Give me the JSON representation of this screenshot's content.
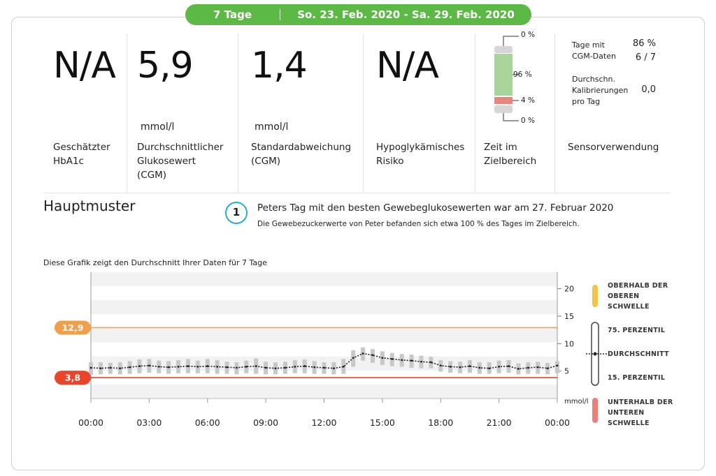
{
  "header": {
    "days": "7 Tage",
    "date_range": "So. 23. Feb. 2020 - Sa. 29. Feb. 2020",
    "color": "#5cb946"
  },
  "stats": {
    "hba1c": {
      "value": "N/A",
      "label": "Geschätzter\nHbA1c"
    },
    "avg_glucose": {
      "value": "5,9",
      "unit": "mmol/l",
      "label": "Durchschnittlicher\nGlukosewert\n(CGM)"
    },
    "std_dev": {
      "value": "1,4",
      "unit": "mmol/l",
      "label": "Standardabweichung\n(CGM)"
    },
    "hypo_risk": {
      "value": "N/A",
      "label": "Hypoglykämisches\nRisiko"
    },
    "time_in_range": {
      "label": "Zeit im\nZielbereich",
      "top_label": "0 %",
      "in_range_label": "96 %",
      "low_label": "4 %",
      "bottom_label": "0 %",
      "above_pct": 0,
      "in_range_pct": 96,
      "below_pct": 4,
      "very_low_pct": 0
    },
    "sensor": {
      "days_label": "Tage mit\nCGM-Daten",
      "days_pct": "86 %",
      "days_count": "6 / 7",
      "calib_label": "Durchschn.\nKalibrierungen\npro Tag",
      "calib_value": "0,0",
      "label": "Sensorverwendung"
    }
  },
  "pattern": {
    "title": "Hauptmuster",
    "number": "1",
    "headline": "Peters Tag mit den besten Gewebeglukosewerten war am 27. Februar 2020",
    "detail": "Die Gewebezuckerwerte von Peter befanden sich etwa 100 % des Tages im Zielbereich."
  },
  "chart_data": {
    "type": "line",
    "caption": "Diese Grafik zeigt den Durchschnitt Ihrer Daten für 7 Tage",
    "x_ticks": [
      "00:00",
      "03:00",
      "06:00",
      "09:00",
      "12:00",
      "15:00",
      "18:00",
      "21:00",
      "00:00"
    ],
    "y_ticks": [
      "20",
      "15",
      "10",
      "5"
    ],
    "y_unit": "mmol/l",
    "ylim": [
      0,
      23
    ],
    "upper_threshold": {
      "value": 12.9,
      "label": "12,9",
      "color": "#f0a04b"
    },
    "lower_threshold": {
      "value": 3.8,
      "label": "3,8",
      "color": "#e8452c"
    },
    "x_hours": [
      0,
      0.5,
      1,
      1.5,
      2,
      2.5,
      3,
      3.5,
      4,
      4.5,
      5,
      5.5,
      6,
      6.5,
      7,
      7.5,
      8,
      8.5,
      9,
      9.5,
      10,
      10.5,
      11,
      11.5,
      12,
      12.5,
      13,
      13.5,
      14,
      14.5,
      15,
      15.5,
      16,
      16.5,
      17,
      17.5,
      18,
      18.5,
      19,
      19.5,
      20,
      20.5,
      21,
      21.5,
      22,
      22.5,
      23,
      23.5,
      24
    ],
    "series": [
      {
        "name": "Durchschnitt",
        "values": [
          5.6,
          5.5,
          5.6,
          5.5,
          5.7,
          5.9,
          6.0,
          5.8,
          5.7,
          5.8,
          5.9,
          5.8,
          5.9,
          5.8,
          5.7,
          5.6,
          5.8,
          5.9,
          5.6,
          5.5,
          5.6,
          5.8,
          5.9,
          5.7,
          5.6,
          5.5,
          5.8,
          7.4,
          8.2,
          7.9,
          7.4,
          7.2,
          7.0,
          6.9,
          6.7,
          6.6,
          6.0,
          5.8,
          5.7,
          5.9,
          5.6,
          5.5,
          5.8,
          5.9,
          5.4,
          5.6,
          5.7,
          5.5,
          6.0
        ]
      },
      {
        "name": "75. Perzentil",
        "values": [
          6.6,
          6.6,
          6.5,
          6.6,
          6.8,
          7.1,
          7.2,
          6.9,
          6.8,
          7.0,
          7.2,
          6.9,
          7.2,
          7.0,
          6.7,
          6.6,
          6.9,
          7.3,
          6.7,
          6.6,
          6.7,
          7.0,
          7.1,
          6.8,
          6.6,
          6.6,
          7.2,
          8.8,
          9.3,
          9.0,
          8.6,
          8.3,
          8.1,
          8.0,
          7.8,
          7.6,
          7.0,
          6.8,
          6.7,
          7.0,
          6.6,
          6.6,
          6.9,
          7.0,
          6.4,
          6.6,
          6.7,
          6.5,
          6.8
        ]
      },
      {
        "name": "15. Perzentil",
        "values": [
          4.3,
          4.4,
          4.5,
          4.4,
          4.5,
          4.6,
          4.7,
          4.6,
          4.5,
          4.6,
          4.6,
          4.6,
          4.6,
          4.5,
          4.5,
          4.4,
          4.6,
          4.5,
          4.4,
          4.4,
          4.5,
          4.6,
          4.6,
          4.5,
          4.5,
          4.4,
          4.5,
          5.8,
          6.9,
          6.5,
          6.1,
          5.9,
          5.8,
          5.6,
          5.5,
          5.5,
          4.9,
          4.7,
          4.6,
          4.7,
          4.5,
          4.5,
          4.6,
          4.7,
          4.4,
          4.5,
          4.5,
          4.4,
          4.6
        ]
      }
    ]
  },
  "legend": {
    "above": {
      "text": "OBERHALB DER\nOBEREN\nSCHWELLE",
      "color": "#f6c344"
    },
    "p75": "75. PERZENTIL",
    "mean": "DURCHSCHNITT",
    "p15": "15. PERZENTIL",
    "below": {
      "text": "UNTERHALB DER\nUNTEREN\nSCHWELLE",
      "color": "#ee7e78"
    }
  }
}
